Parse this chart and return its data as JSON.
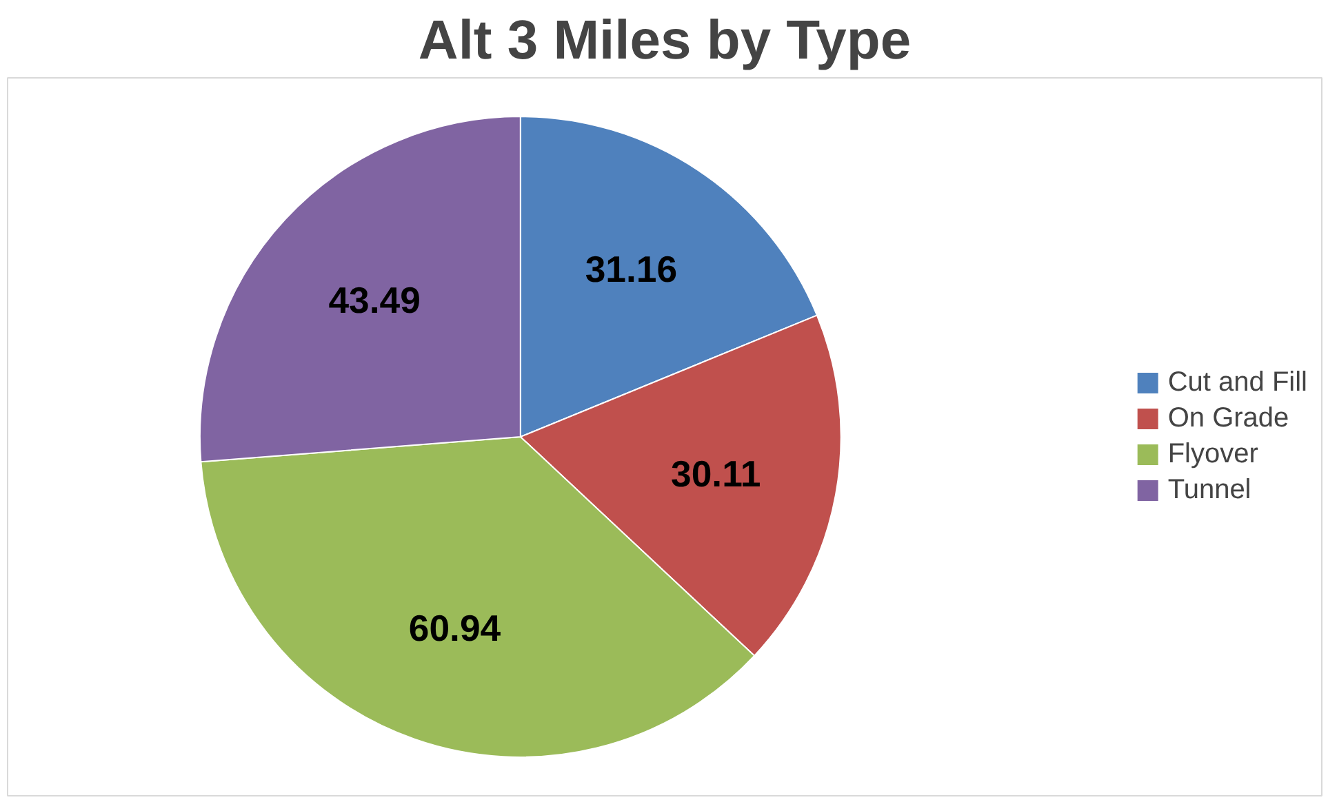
{
  "chart_data": {
    "type": "pie",
    "title": "Alt 3 Miles by Type",
    "categories": [
      "Cut and Fill",
      "On Grade",
      "Flyover",
      "Tunnel"
    ],
    "values": [
      31.16,
      30.11,
      60.94,
      43.49
    ],
    "colors": [
      "#4f81bd",
      "#c0504d",
      "#9bbb59",
      "#8064a2"
    ],
    "data_labels": true,
    "legend": "right"
  }
}
